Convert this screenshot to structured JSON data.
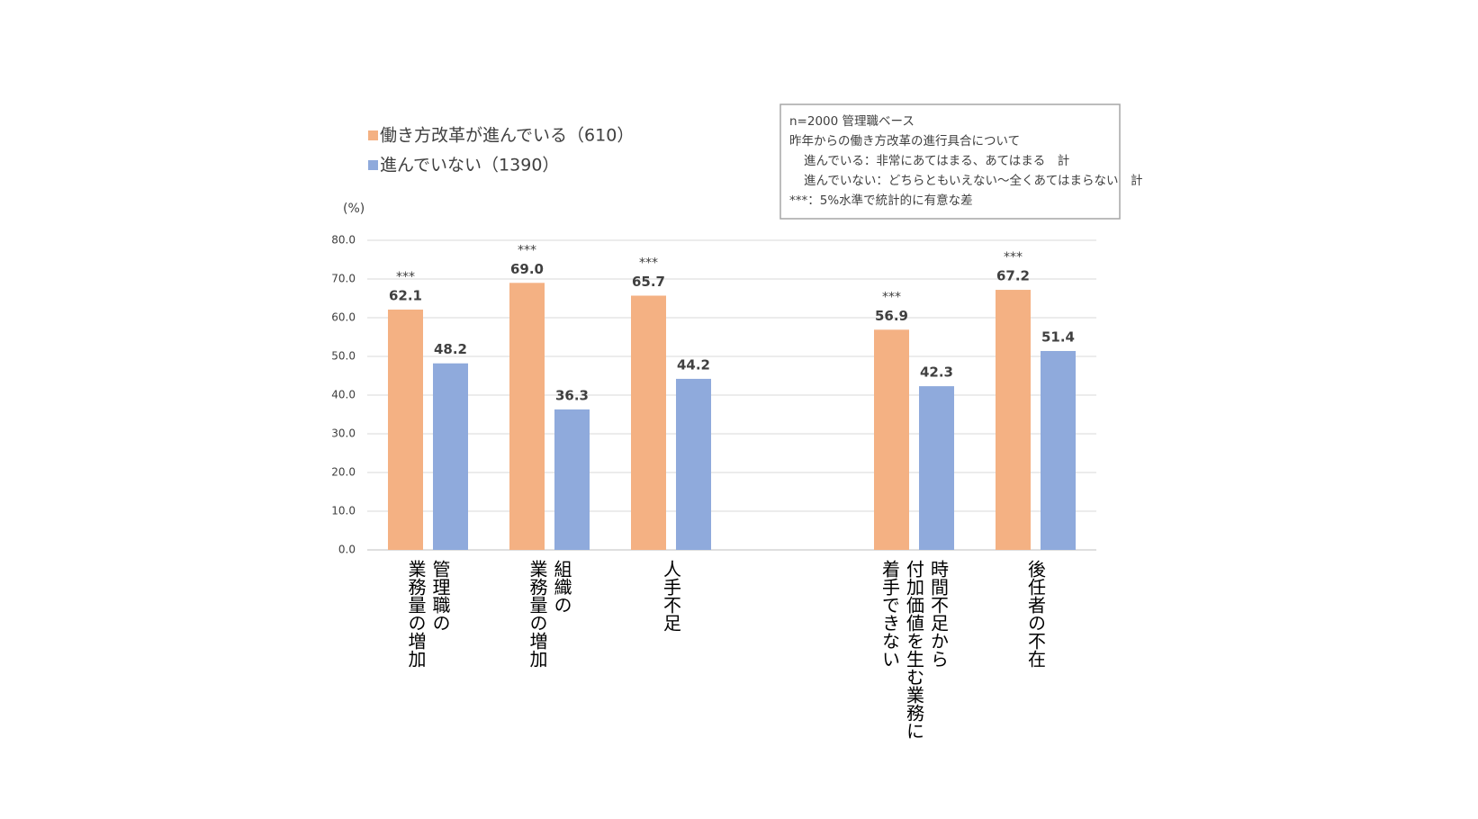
{
  "chart_data": {
    "type": "bar",
    "y_label": "(%)",
    "categories": [
      [
        "管理職の",
        "業務量の増加"
      ],
      [
        "組織の",
        "業務量の増加"
      ],
      [
        "人手不足"
      ],
      null,
      [
        "時間不足から",
        "付加価値を生む業務に",
        "着手できない"
      ],
      [
        "後任者の不在"
      ]
    ],
    "series": [
      {
        "name": "働き方改革が進んでいる（610）",
        "color": "#f4b183",
        "label_color": "#c55a11",
        "values": [
          62.1,
          69.0,
          65.7,
          null,
          56.9,
          67.2
        ],
        "value_labels": [
          "62.1",
          "69.0",
          "65.7",
          null,
          "56.9",
          "67.2"
        ]
      },
      {
        "name": "進んでいない（1390）",
        "color": "#8faadc",
        "label_color": "#2f5597",
        "values": [
          48.2,
          36.3,
          44.2,
          null,
          42.3,
          51.4
        ],
        "value_labels": [
          "48.2",
          "36.3",
          "44.2",
          null,
          "42.3",
          "51.4"
        ]
      }
    ],
    "significance": [
      "***",
      "***",
      "***",
      null,
      "***",
      "***"
    ],
    "note": [
      "n=2000 管理職ベース",
      "昨年からの働き方改革の進行具合について",
      "進んでいる：非常にあてはまる、あてはまる　計",
      "進んでいない：どちらともいえない～全くあてはまらない　計",
      "***：5%水準で統計的に有意な差"
    ],
    "ylim": [
      0,
      80
    ],
    "yticks": [
      {
        "value": 0,
        "label": "0.0"
      },
      {
        "value": 10,
        "label": "10.0"
      },
      {
        "value": 20,
        "label": "20.0"
      },
      {
        "value": 30,
        "label": "30.0"
      },
      {
        "value": 40,
        "label": "40.0"
      },
      {
        "value": 50,
        "label": "50.0"
      },
      {
        "value": 60,
        "label": "60.0"
      },
      {
        "value": 70,
        "label": "70.0"
      },
      {
        "value": 80,
        "label": "80.0"
      }
    ],
    "grid": true
  }
}
